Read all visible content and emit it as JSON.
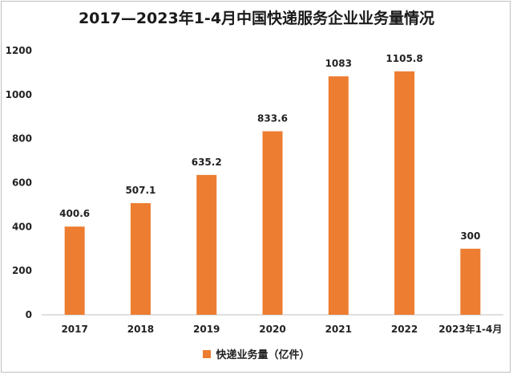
{
  "chart_data": {
    "type": "bar",
    "title": "2017—2023年1-4月中国快递服务企业业务量情况",
    "categories": [
      "2017",
      "2018",
      "2019",
      "2020",
      "2021",
      "2022",
      "2023年1-4月"
    ],
    "series": [
      {
        "name": "快递业务量（亿件）",
        "values": [
          400.6,
          507.1,
          635.2,
          833.6,
          1083,
          1105.8,
          300
        ],
        "labels": [
          "400.6",
          "507.1",
          "635.2",
          "833.6",
          "1083",
          "1105.8",
          "300"
        ]
      }
    ],
    "yticks": [
      "0",
      "200",
      "400",
      "600",
      "800",
      "1000",
      "1200"
    ],
    "ylim": [
      0,
      1200
    ],
    "grid": false,
    "legend_position": "bottom"
  },
  "colors": {
    "bar": "#ED7D31",
    "axis": "#bfbfbf"
  }
}
